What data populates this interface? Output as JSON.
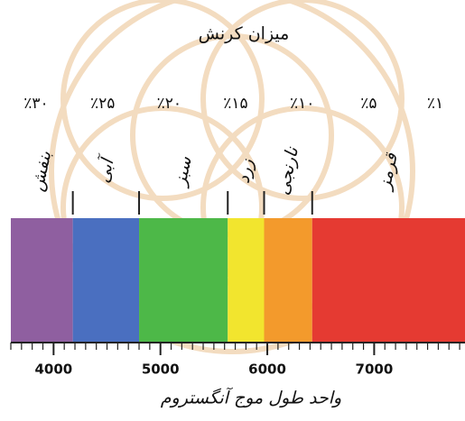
{
  "title": "میزان کرنش",
  "percentages": [
    "٪۳۰",
    "٪۲۵",
    "٪۲۰",
    "٪۱۵",
    "٪۱۰",
    "٪۵",
    "٪۱"
  ],
  "axis": {
    "label": "واحد طول موج آنگستروم",
    "xlim": [
      3600,
      7850
    ],
    "xticks": [
      4000,
      5000,
      6000,
      7000
    ]
  },
  "bands": [
    {
      "label": "بنفش",
      "start": 3600,
      "end": 4180,
      "color": "#8f5fa0"
    },
    {
      "label": "آبی",
      "start": 4180,
      "end": 4800,
      "color": "#4a6fc0"
    },
    {
      "label": "سبز",
      "start": 4800,
      "end": 5630,
      "color": "#4db848"
    },
    {
      "label": "زرد",
      "start": 5630,
      "end": 5970,
      "color": "#f2e52e"
    },
    {
      "label": "نارنجی",
      "start": 5970,
      "end": 6420,
      "color": "#f39a2c"
    },
    {
      "label": "قرمز",
      "start": 6420,
      "end": 7850,
      "color": "#e53a32"
    }
  ]
}
